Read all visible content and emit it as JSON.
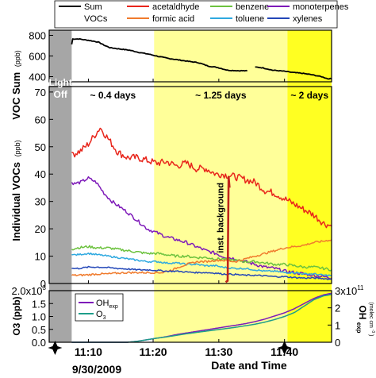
{
  "chart_data": [
    {
      "type": "line",
      "ylabel": "VOC Sum",
      "ylabel_unit": "(ppb)",
      "ylim": [
        350,
        850
      ],
      "yticks": [
        "800",
        "600",
        "400"
      ],
      "ytick_values": [
        800,
        600,
        400
      ],
      "series": [
        {
          "name": "Sum VOCs",
          "color": "#000000",
          "x": [
            11.5,
            12,
            15,
            20,
            25,
            28,
            31,
            36,
            41,
            46,
            51,
            56,
            61,
            66,
            71,
            76,
            81,
            86,
            91,
            96,
            101
          ],
          "y": [
            712,
            765,
            765,
            752,
            735,
            705,
            680,
            668,
            656,
            634,
            617,
            594,
            576,
            562,
            548,
            536,
            503,
            488,
            462,
            458,
            456
          ]
        },
        {
          "name": "Sum VOCs",
          "color": "#000000",
          "x": [
            105,
            109,
            114,
            119,
            124,
            129,
            134,
            139,
            142,
            144
          ],
          "y": [
            493,
            485,
            462,
            454,
            441,
            432,
            418,
            399,
            380,
            380
          ]
        }
      ]
    },
    {
      "type": "line",
      "ylabel": "Individual VOCs",
      "ylabel_unit": "(ppb)",
      "ylim": [
        0,
        72
      ],
      "yticks": [
        "0",
        "10",
        "20",
        "30",
        "40",
        "50",
        "60",
        "70"
      ],
      "ytick_values": [
        0,
        10,
        20,
        30,
        40,
        50,
        60,
        70
      ],
      "series": [
        {
          "name": "acetaldhyde",
          "color": "#e8251b",
          "x": [
            11.5,
            13,
            16,
            20,
            24,
            26,
            30,
            35,
            40,
            45,
            50,
            55,
            60,
            65,
            70,
            75,
            80,
            85,
            88,
            95,
            100,
            105,
            110,
            115,
            120,
            125,
            130,
            135,
            140,
            144
          ],
          "y": [
            48,
            47.5,
            48.5,
            51,
            55,
            57,
            53,
            48,
            46,
            46,
            45,
            44,
            44.5,
            43,
            44,
            42,
            42,
            40,
            40,
            39,
            38,
            37,
            34,
            33,
            31,
            29,
            27,
            25,
            22,
            21
          ]
        },
        {
          "name": "monoterpenes",
          "color": "#7e1ab9",
          "x": [
            11.5,
            13,
            16,
            20,
            24,
            28,
            32,
            36,
            40,
            45,
            50,
            55,
            60,
            65,
            70,
            75,
            80,
            85,
            88,
            95,
            100,
            105,
            110,
            115,
            120,
            125,
            130,
            135,
            140,
            144
          ],
          "y": [
            37,
            36.5,
            37,
            38.5,
            37,
            33,
            30,
            28,
            26,
            23,
            20,
            18.5,
            17,
            16,
            15,
            13.5,
            12,
            11,
            10,
            9,
            8,
            7,
            6,
            5.5,
            4.5,
            4,
            3.5,
            3,
            2.5,
            2
          ]
        },
        {
          "name": "benzene",
          "color": "#6cc23e",
          "x": [
            11.5,
            14,
            20,
            25,
            30,
            35,
            40,
            45,
            50,
            55,
            60,
            65,
            70,
            75,
            80,
            85,
            88,
            95,
            100,
            105,
            110,
            115,
            120,
            125,
            130,
            135,
            140,
            144
          ],
          "y": [
            12.5,
            13,
            13.5,
            13,
            13,
            12.5,
            12,
            11.5,
            11,
            11,
            10.5,
            10,
            10,
            9.5,
            9.5,
            9,
            9,
            8.5,
            8,
            8,
            7.5,
            7,
            7,
            6.5,
            6,
            6,
            5.5,
            5
          ]
        },
        {
          "name": "toluene",
          "color": "#2ea9e0",
          "x": [
            11.5,
            14,
            20,
            25,
            30,
            35,
            40,
            45,
            50,
            55,
            60,
            65,
            70,
            75,
            80,
            85,
            88,
            95,
            100,
            105,
            110,
            115,
            120,
            125,
            130,
            135,
            140,
            144
          ],
          "y": [
            10.5,
            10.5,
            11,
            10.5,
            10,
            9.5,
            9,
            8.5,
            8,
            8,
            7.5,
            7.5,
            7,
            7,
            6.5,
            6.5,
            6,
            5.5,
            5.5,
            5,
            4.5,
            4.5,
            4,
            4,
            3.5,
            3.5,
            3,
            3
          ]
        },
        {
          "name": "formic acid",
          "color": "#f07b2d",
          "x": [
            11.5,
            15,
            20,
            25,
            30,
            35,
            40,
            45,
            50,
            55,
            58,
            60,
            63,
            66,
            70,
            73,
            76,
            80,
            85,
            88,
            95,
            100,
            105,
            110,
            115,
            120,
            125,
            130,
            135,
            140,
            144
          ],
          "y": [
            3,
            3,
            3.2,
            3.5,
            3.5,
            3.8,
            4,
            4,
            4,
            4,
            4,
            4.5,
            5,
            6,
            7,
            7.5,
            8,
            8,
            8.5,
            8.5,
            8,
            9,
            10,
            11,
            12,
            13,
            13.5,
            14,
            15,
            15.5,
            16
          ]
        },
        {
          "name": "xylenes",
          "color": "#2347b8",
          "x": [
            11.5,
            15,
            20,
            25,
            30,
            35,
            40,
            45,
            50,
            55,
            60,
            65,
            70,
            75,
            80,
            85,
            88,
            95,
            100,
            105,
            110,
            115,
            120,
            125,
            130,
            135,
            140,
            144
          ],
          "y": [
            5.5,
            5.5,
            6,
            6,
            5.8,
            5.5,
            5.3,
            5,
            5,
            4.8,
            4.5,
            4.5,
            4.2,
            4,
            4,
            3.8,
            3.5,
            3.3,
            3,
            3,
            2.8,
            2.5,
            2.5,
            2.2,
            2,
            2,
            1.8,
            1.5
          ]
        },
        {
          "name": "inst. background",
          "color": "#c0241b",
          "x": [
            90,
            91,
            91.5,
            92
          ],
          "y": [
            0.5,
            1,
            39,
            35
          ]
        }
      ]
    },
    {
      "type": "line",
      "ylabel": "O3 (ppb)",
      "ylim": [
        0,
        2000
      ],
      "yticks": [
        "0.0",
        "0.5",
        "1.0",
        "1.5",
        "2.0x10"
      ],
      "ytick_values": [
        0,
        500,
        1000,
        1500,
        2000
      ],
      "ytick_exponent": "3",
      "y2label": "OH",
      "y2label_sub": "exp",
      "y2label_unit": "(molec cm",
      "y2label_unit_exp": "-3",
      "y2label_unit_close": ")",
      "y2lim": [
        0,
        300000000000.0
      ],
      "y2ticks": [
        "0",
        "1",
        "2",
        "3x10"
      ],
      "y2tick_values": [
        0,
        100000000000.0,
        200000000000.0,
        300000000000.0
      ],
      "y2tick_exponent": "11",
      "legend": [
        {
          "name": "OH",
          "sub": "exp",
          "color": "#7e1ab9"
        },
        {
          "name": "O",
          "sub": "3",
          "color": "#1e9e8a"
        }
      ],
      "legend_position": "top-left",
      "series": [
        {
          "name": "OH exp",
          "color": "#7e1ab9",
          "axis": "right",
          "x": [
            11.5,
            40,
            45,
            50,
            55,
            60,
            65,
            70,
            75,
            80,
            85,
            90,
            95,
            100,
            105,
            110,
            115,
            120,
            125,
            130,
            135,
            140,
            144
          ],
          "y": [
            0,
            0,
            6000000000.0,
            15000000000.0,
            24000000000.0,
            33000000000.0,
            45000000000.0,
            54000000000.0,
            63000000000.0,
            72000000000.0,
            81000000000.0,
            90000000000.0,
            99000000000.0,
            108000000000.0,
            120000000000.0,
            135000000000.0,
            153000000000.0,
            171000000000.0,
            195000000000.0,
            225000000000.0,
            255000000000.0,
            276000000000.0,
            285000000000.0
          ]
        },
        {
          "name": "O3",
          "color": "#1e9e8a",
          "axis": "left",
          "x": [
            11.5,
            40,
            45,
            50,
            55,
            60,
            65,
            70,
            75,
            80,
            85,
            90,
            95,
            100,
            105,
            110,
            115,
            120,
            125,
            130,
            135,
            140,
            144
          ],
          "y": [
            0,
            0,
            40,
            100,
            160,
            210,
            270,
            330,
            380,
            430,
            480,
            530,
            580,
            640,
            700,
            780,
            880,
            1000,
            1150,
            1400,
            1650,
            1800,
            1850
          ]
        }
      ]
    }
  ],
  "figure": {
    "xlim": [
      0,
      144
    ],
    "xticks": [
      "11:10",
      "11:20",
      "11:30",
      "11:40"
    ],
    "xtick_values": [
      20,
      53,
      86.5,
      120
    ],
    "xlabel": "Date and Time",
    "date_label": "9/30/2009",
    "marker_x": [
      3,
      120
    ],
    "regions": [
      {
        "x0": 0,
        "x1": 11.5,
        "color": "#a6a6a6",
        "label_lines": [
          "Light",
          "Off"
        ],
        "label_color": "#ffffff"
      },
      {
        "x0": 11.5,
        "x1": 53.5,
        "color": "#ffffff",
        "label_lines": [
          "~ 0.4 days"
        ],
        "label_color": "#000000"
      },
      {
        "x0": 53.5,
        "x1": 121.5,
        "color": "#ffff99",
        "label_lines": [
          "~ 1.25 days"
        ],
        "label_color": "#000000"
      },
      {
        "x0": 121.5,
        "x1": 144,
        "color": "#ffff22",
        "label_lines": [
          "~ 2 days"
        ],
        "label_color": "#000000"
      }
    ],
    "annotation": "inst. background"
  },
  "legend": {
    "position": "top",
    "items": [
      {
        "label": "Sum",
        "label2": "VOCs",
        "color": "#000000"
      },
      {
        "label": "acetaldhyde",
        "color": "#e8251b"
      },
      {
        "label": "benzene",
        "color": "#6cc23e"
      },
      {
        "label": "monoterpenes",
        "color": "#7e1ab9"
      },
      {
        "label": "formic acid",
        "color": "#f07b2d"
      },
      {
        "label": "toluene",
        "color": "#2ea9e0"
      },
      {
        "label": "xylenes",
        "color": "#2347b8"
      }
    ]
  }
}
